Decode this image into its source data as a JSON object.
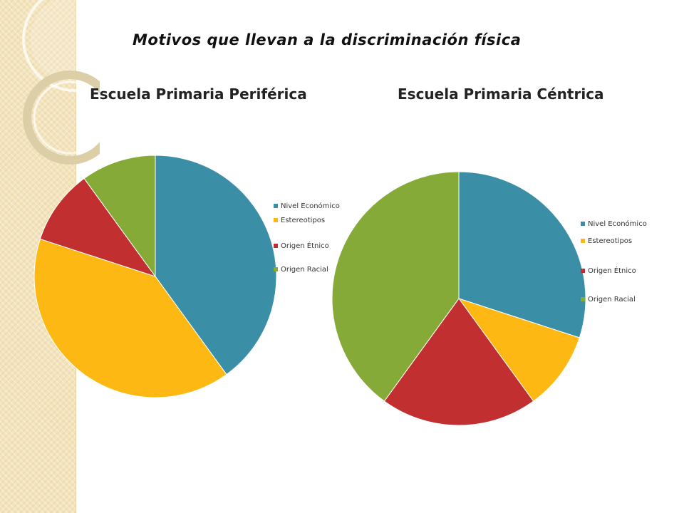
{
  "slide": {
    "title": "Motivos que llevan a la discriminación física"
  },
  "colors": {
    "nivel_economico": "#3a8fa6",
    "estereotipos": "#fdb813",
    "origen_etnico": "#c22f30",
    "origen_racial": "#86aa37"
  },
  "chart_data": [
    {
      "type": "pie",
      "title": "Escuela Primaria Periférica",
      "categories": [
        "Nivel Económico",
        "Estereotipos",
        "Origen Étnico",
        "Origen Racial"
      ],
      "values": [
        40,
        40,
        10,
        10
      ],
      "colors": [
        "#3a8fa6",
        "#fdb813",
        "#c22f30",
        "#86aa37"
      ],
      "legend": "right"
    },
    {
      "type": "pie",
      "title": "Escuela Primaria Céntrica",
      "categories": [
        "Nivel Económico",
        "Estereotipos",
        "Origen Étnico",
        "Origen Racial"
      ],
      "values": [
        30,
        10,
        20,
        40
      ],
      "colors": [
        "#3a8fa6",
        "#fdb813",
        "#c22f30",
        "#86aa37"
      ],
      "legend": "right"
    }
  ]
}
